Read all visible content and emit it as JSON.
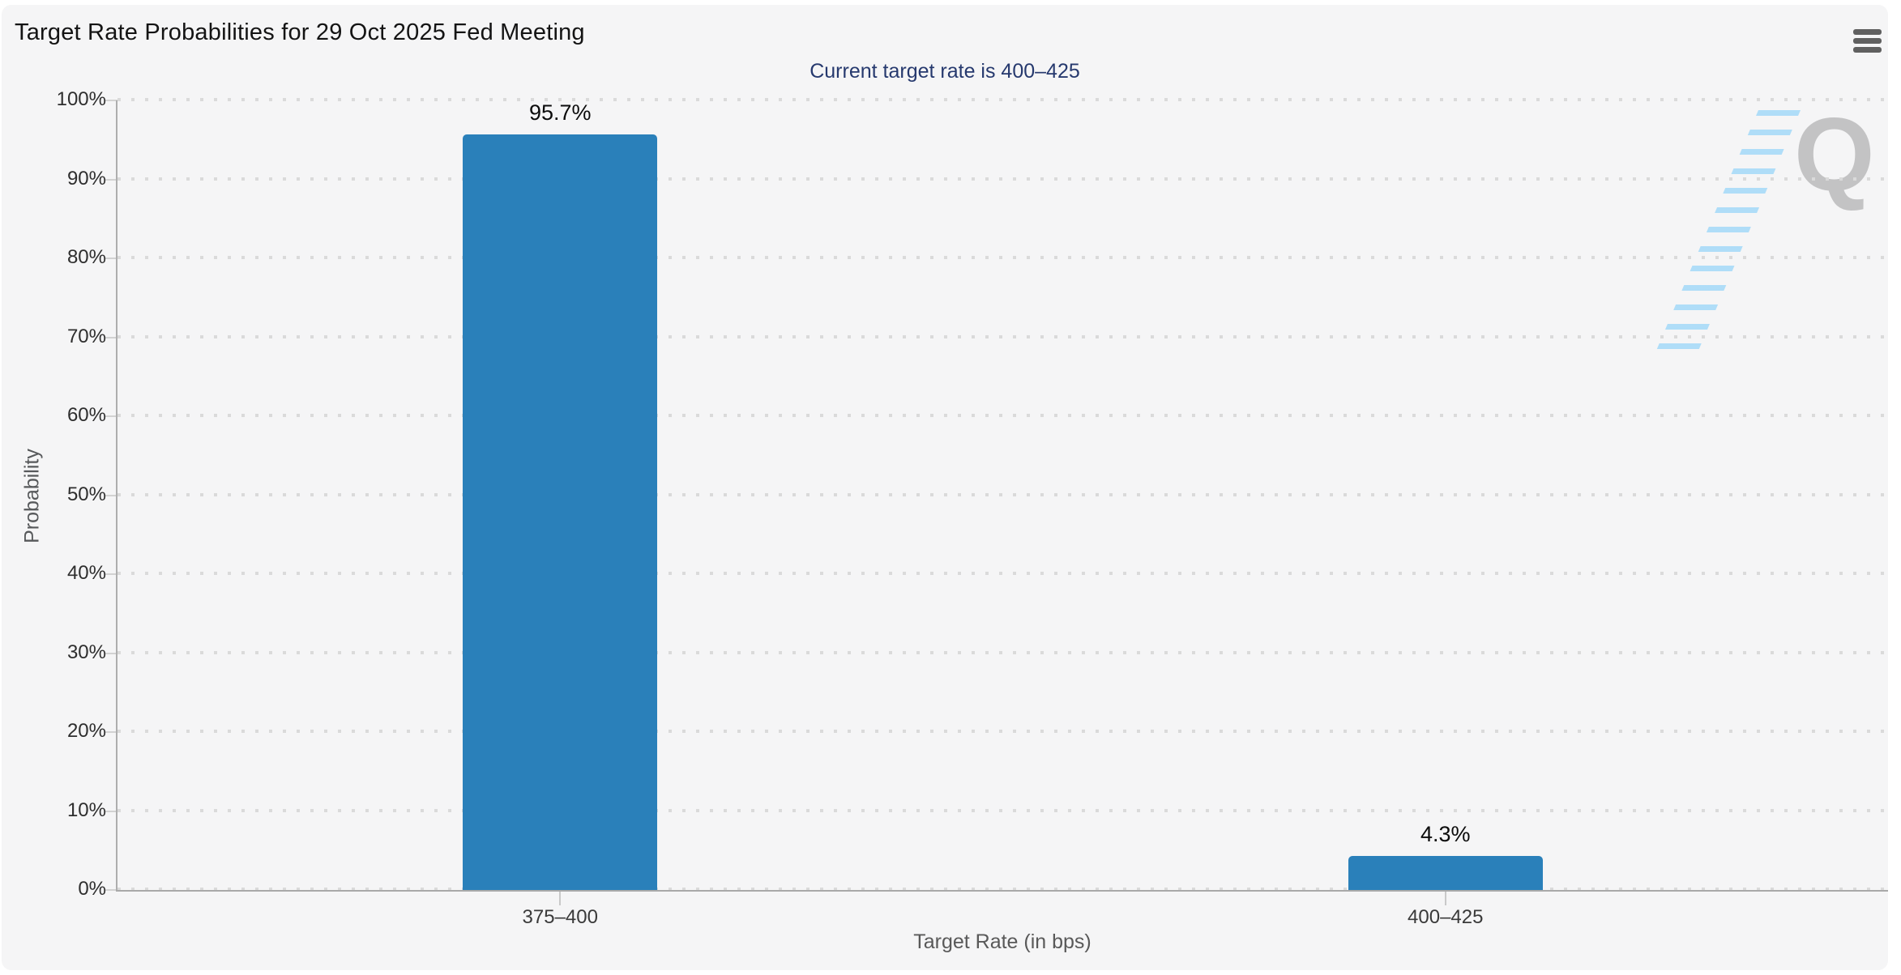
{
  "header": {
    "title": "Target Rate Probabilities for 29 Oct 2025 Fed Meeting",
    "menu_icon": "hamburger-menu-icon"
  },
  "chart_data": {
    "type": "bar",
    "title": "Target Rate Probabilities for 29 Oct 2025 Fed Meeting",
    "subtitle": "Current target rate is 400–425",
    "categories": [
      "375–400",
      "400–425"
    ],
    "values": [
      95.7,
      4.3
    ],
    "value_labels": [
      "95.7%",
      "4.3%"
    ],
    "xlabel": "Target Rate (in bps)",
    "ylabel": "Probability",
    "ylim": [
      0,
      100
    ],
    "ytick_step": 10,
    "ytick_labels": [
      "0%",
      "10%",
      "20%",
      "30%",
      "40%",
      "50%",
      "60%",
      "70%",
      "80%",
      "90%",
      "100%"
    ],
    "grid": "dotted-horizontal",
    "legend": "none",
    "bar_color": "#2a80ba"
  },
  "watermark": {
    "letter": "Q",
    "letter_color": "#c3c3c4",
    "dash_color": "#a3d9f8"
  },
  "colors": {
    "card_background": "#f5f5f6",
    "page_background": "#ffffff",
    "title_text": "#141414",
    "subtitle_text": "#26396e",
    "axis_line": "#aeaeae",
    "gridline_dot": "#dadada",
    "axis_label": "#2e2e2e",
    "axis_title": "#595959",
    "menu_icon": "#606060"
  }
}
